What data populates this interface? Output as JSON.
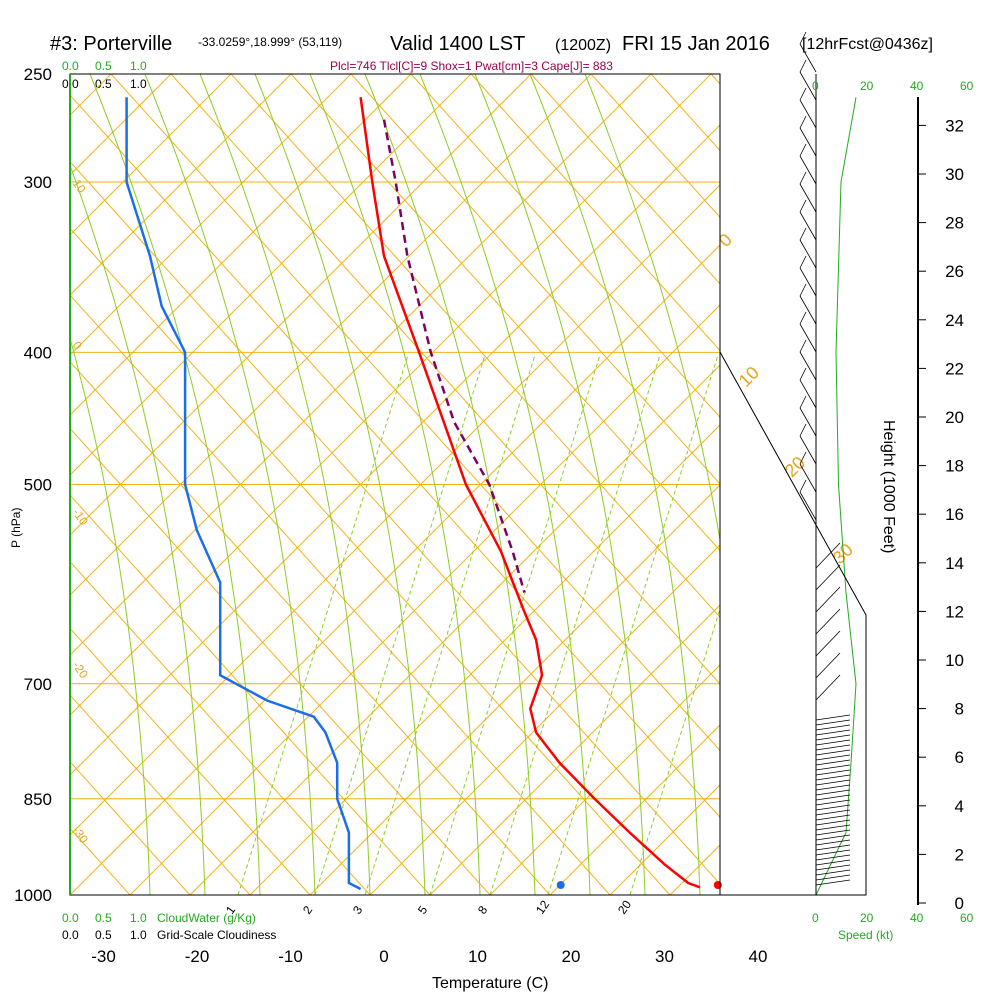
{
  "header": {
    "station": "#3: Porterville",
    "coords": "-33.0259°,18.999° (53,119)",
    "valid": "Valid 1400 LST",
    "zulu": "(1200Z)",
    "date": "FRI 15 Jan 2016",
    "forecast": "[12hrFcst@0436z]"
  },
  "indices": "Plcl=746 Tlcl[C]=9 Shox=1 Pwat[cm]=3 Cape[J]= 883",
  "colors": {
    "temperature": "#ff0000",
    "dewpoint": "#1a6fe8",
    "parcel": "#800060",
    "isobar": "#f2b21b",
    "dry_adiabat": "#8fcc22",
    "mixing_ratio": "#8fcc22",
    "cloud": "#22aa22"
  },
  "top_scales": {
    "cloud_water_ticks": [
      "0.0",
      "0.5",
      "1.0"
    ],
    "cloudiness_ticks": [
      "0.0",
      "0.5",
      "1.0"
    ]
  },
  "bottom_scales": {
    "cloud_water_ticks": [
      "0.0",
      "0.5",
      "1.0"
    ],
    "cloud_water_label": "CloudWater (g/Kg)",
    "cloudiness_ticks": [
      "0.0",
      "0.5",
      "1.0"
    ],
    "cloudiness_label": "Grid-Scale Cloudiness"
  },
  "wind_speed_axis": {
    "ticks": [
      "0",
      "20",
      "40",
      "60"
    ],
    "label": "Speed (kt)"
  },
  "chart_data": {
    "type": "line",
    "title": "#3: Porterville Valid 1400 LST (1200Z) FRI 15 Jan 2016 [12hrFcst@0436z]",
    "xlabel": "Temperature (C)",
    "ylabel": "P (hPa)",
    "y2label": "Height (1000 Feet)",
    "xlim": [
      -35,
      45
    ],
    "ylim": [
      1000,
      250
    ],
    "y_scale": "log",
    "x_ticks": [
      -30,
      -20,
      -10,
      0,
      10,
      20,
      30,
      40
    ],
    "y_ticks": [
      250,
      300,
      400,
      500,
      700,
      850,
      1000
    ],
    "y2_ticks": [
      0,
      2,
      4,
      6,
      8,
      10,
      12,
      14,
      16,
      18,
      20,
      22,
      24,
      26,
      28,
      30,
      32
    ],
    "isotherm_labels": [
      "10",
      "0",
      "-10",
      "-20",
      "-30"
    ],
    "adiabat_labels": [
      "0",
      "10",
      "20",
      "30"
    ],
    "mixing_ratio_labels": [
      "1",
      "2",
      "3",
      "5",
      "8",
      "12",
      "20"
    ],
    "series": [
      {
        "name": "temperature",
        "points": [
          [
            -2,
            260
          ],
          [
            -1,
            300
          ],
          [
            0,
            340
          ],
          [
            3,
            400
          ],
          [
            7,
            500
          ],
          [
            10,
            560
          ],
          [
            12,
            620
          ],
          [
            13,
            650
          ],
          [
            13.5,
            690
          ],
          [
            13,
            710
          ],
          [
            12.5,
            730
          ],
          [
            13,
            760
          ],
          [
            15,
            800
          ],
          [
            18,
            850
          ],
          [
            21,
            900
          ],
          [
            24,
            950
          ],
          [
            26,
            980
          ],
          [
            27,
            987
          ]
        ]
      },
      {
        "name": "dewpoint",
        "points": [
          [
            -22,
            260
          ],
          [
            -22,
            300
          ],
          [
            -20,
            340
          ],
          [
            -19,
            370
          ],
          [
            -17,
            400
          ],
          [
            -17,
            430
          ],
          [
            -17,
            500
          ],
          [
            -16,
            540
          ],
          [
            -14,
            590
          ],
          [
            -14,
            630
          ],
          [
            -14,
            670
          ],
          [
            -14,
            690
          ],
          [
            -10,
            720
          ],
          [
            -6,
            740
          ],
          [
            -5,
            760
          ],
          [
            -4,
            800
          ],
          [
            -4,
            850
          ],
          [
            -3,
            900
          ],
          [
            -3,
            950
          ],
          [
            -3,
            980
          ],
          [
            -2,
            990
          ]
        ]
      },
      {
        "name": "parcel",
        "points": [
          [
            0,
            270
          ],
          [
            1,
            300
          ],
          [
            2,
            340
          ],
          [
            4,
            400
          ],
          [
            6,
            450
          ],
          [
            9,
            500
          ],
          [
            11,
            560
          ],
          [
            12,
            600
          ]
        ]
      }
    ],
    "surface_temperature": 35.7,
    "surface_dewpoint": 18.9,
    "cloud_water_profile": {
      "xlim": [
        0,
        60
      ],
      "series": [
        {
          "name": "speed",
          "points": [
            [
              0,
              1000
            ],
            [
              12,
              900
            ],
            [
              14,
              800
            ],
            [
              16,
              700
            ],
            [
              12,
              600
            ],
            [
              9,
              500
            ],
            [
              8,
              400
            ],
            [
              10,
              300
            ],
            [
              16,
              260
            ]
          ]
        }
      ]
    }
  }
}
